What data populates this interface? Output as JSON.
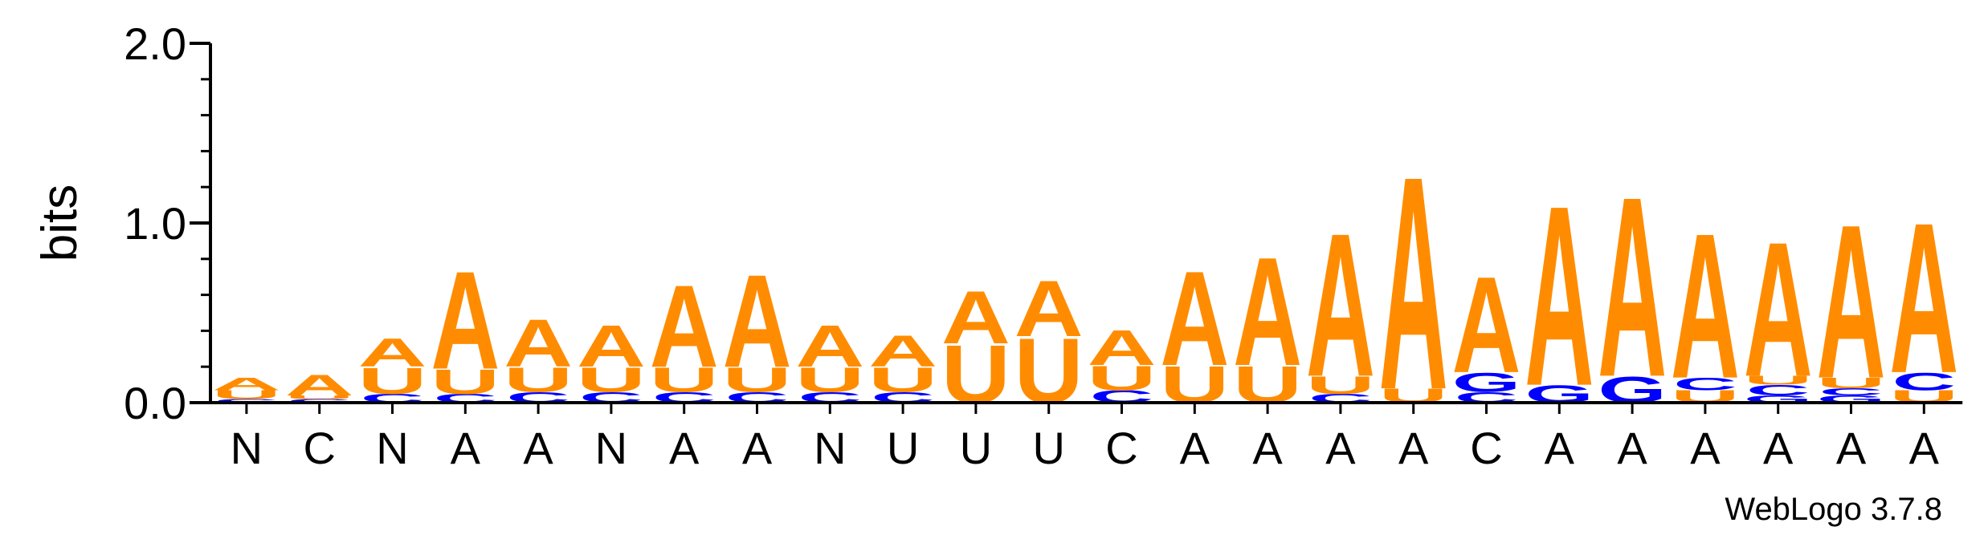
{
  "chart_data": {
    "type": "sequence-logo",
    "ylabel": "bits",
    "ylim": [
      0,
      2
    ],
    "yticks": [
      {
        "value": 0,
        "label": "0.0"
      },
      {
        "value": 1,
        "label": "1.0"
      },
      {
        "value": 2,
        "label": "2.0"
      }
    ],
    "positions": [
      "N",
      "C",
      "N",
      "A",
      "A",
      "N",
      "A",
      "A",
      "N",
      "U",
      "U",
      "U",
      "C",
      "A",
      "A",
      "A",
      "A",
      "C",
      "A",
      "A",
      "A",
      "A",
      "A",
      "A"
    ],
    "colors": {
      "A": "#ff8c00",
      "U": "#ff8c00",
      "C": "#0000ff",
      "G": "#0000ff"
    },
    "stacks": [
      [
        {
          "l": "C",
          "h": 0.02
        },
        {
          "l": "U",
          "h": 0.05
        },
        {
          "l": "A",
          "h": 0.07
        }
      ],
      [
        {
          "l": "C",
          "h": 0.02
        },
        {
          "l": "U",
          "h": 0.02
        },
        {
          "l": "A",
          "h": 0.12
        }
      ],
      [
        {
          "l": "C",
          "h": 0.05
        },
        {
          "l": "U",
          "h": 0.15
        },
        {
          "l": "A",
          "h": 0.16
        }
      ],
      [
        {
          "l": "C",
          "h": 0.05
        },
        {
          "l": "U",
          "h": 0.14
        },
        {
          "l": "A",
          "h": 0.56
        }
      ],
      [
        {
          "l": "C",
          "h": 0.06
        },
        {
          "l": "U",
          "h": 0.14
        },
        {
          "l": "A",
          "h": 0.27
        }
      ],
      [
        {
          "l": "C",
          "h": 0.06
        },
        {
          "l": "U",
          "h": 0.14
        },
        {
          "l": "A",
          "h": 0.24
        }
      ],
      [
        {
          "l": "C",
          "h": 0.06
        },
        {
          "l": "U",
          "h": 0.14
        },
        {
          "l": "A",
          "h": 0.47
        }
      ],
      [
        {
          "l": "C",
          "h": 0.06
        },
        {
          "l": "U",
          "h": 0.14
        },
        {
          "l": "A",
          "h": 0.53
        }
      ],
      [
        {
          "l": "C",
          "h": 0.06
        },
        {
          "l": "U",
          "h": 0.14
        },
        {
          "l": "A",
          "h": 0.24
        }
      ],
      [
        {
          "l": "C",
          "h": 0.06
        },
        {
          "l": "U",
          "h": 0.14
        },
        {
          "l": "A",
          "h": 0.18
        }
      ],
      [
        {
          "l": "U",
          "h": 0.33
        },
        {
          "l": "A",
          "h": 0.3
        }
      ],
      [
        {
          "l": "U",
          "h": 0.37
        },
        {
          "l": "A",
          "h": 0.32
        }
      ],
      [
        {
          "l": "C",
          "h": 0.07
        },
        {
          "l": "U",
          "h": 0.14
        },
        {
          "l": "A",
          "h": 0.2
        }
      ],
      [
        {
          "l": "U",
          "h": 0.21
        },
        {
          "l": "A",
          "h": 0.54
        }
      ],
      [
        {
          "l": "U",
          "h": 0.21
        },
        {
          "l": "A",
          "h": 0.62
        }
      ],
      [
        {
          "l": "C",
          "h": 0.05
        },
        {
          "l": "U",
          "h": 0.1
        },
        {
          "l": "A",
          "h": 0.82
        }
      ],
      [
        {
          "l": "U",
          "h": 0.08
        },
        {
          "l": "A",
          "h": 1.22
        }
      ],
      [
        {
          "l": "C",
          "h": 0.06
        },
        {
          "l": "G",
          "h": 0.11
        },
        {
          "l": "A",
          "h": 0.55
        }
      ],
      [
        {
          "l": "G",
          "h": 0.1
        },
        {
          "l": "A",
          "h": 1.03
        }
      ],
      [
        {
          "l": "G",
          "h": 0.15
        },
        {
          "l": "A",
          "h": 1.03
        }
      ],
      [
        {
          "l": "U",
          "h": 0.07
        },
        {
          "l": "C",
          "h": 0.07
        },
        {
          "l": "A",
          "h": 0.83
        }
      ],
      [
        {
          "l": "G",
          "h": 0.04
        },
        {
          "l": "C",
          "h": 0.06
        },
        {
          "l": "U",
          "h": 0.05
        },
        {
          "l": "A",
          "h": 0.77
        }
      ],
      [
        {
          "l": "G",
          "h": 0.04
        },
        {
          "l": "C",
          "h": 0.04
        },
        {
          "l": "U",
          "h": 0.06
        },
        {
          "l": "A",
          "h": 0.88
        }
      ],
      [
        {
          "l": "U",
          "h": 0.07
        },
        {
          "l": "C",
          "h": 0.1
        },
        {
          "l": "A",
          "h": 0.86
        }
      ]
    ]
  },
  "credit": "WebLogo 3.7.8"
}
